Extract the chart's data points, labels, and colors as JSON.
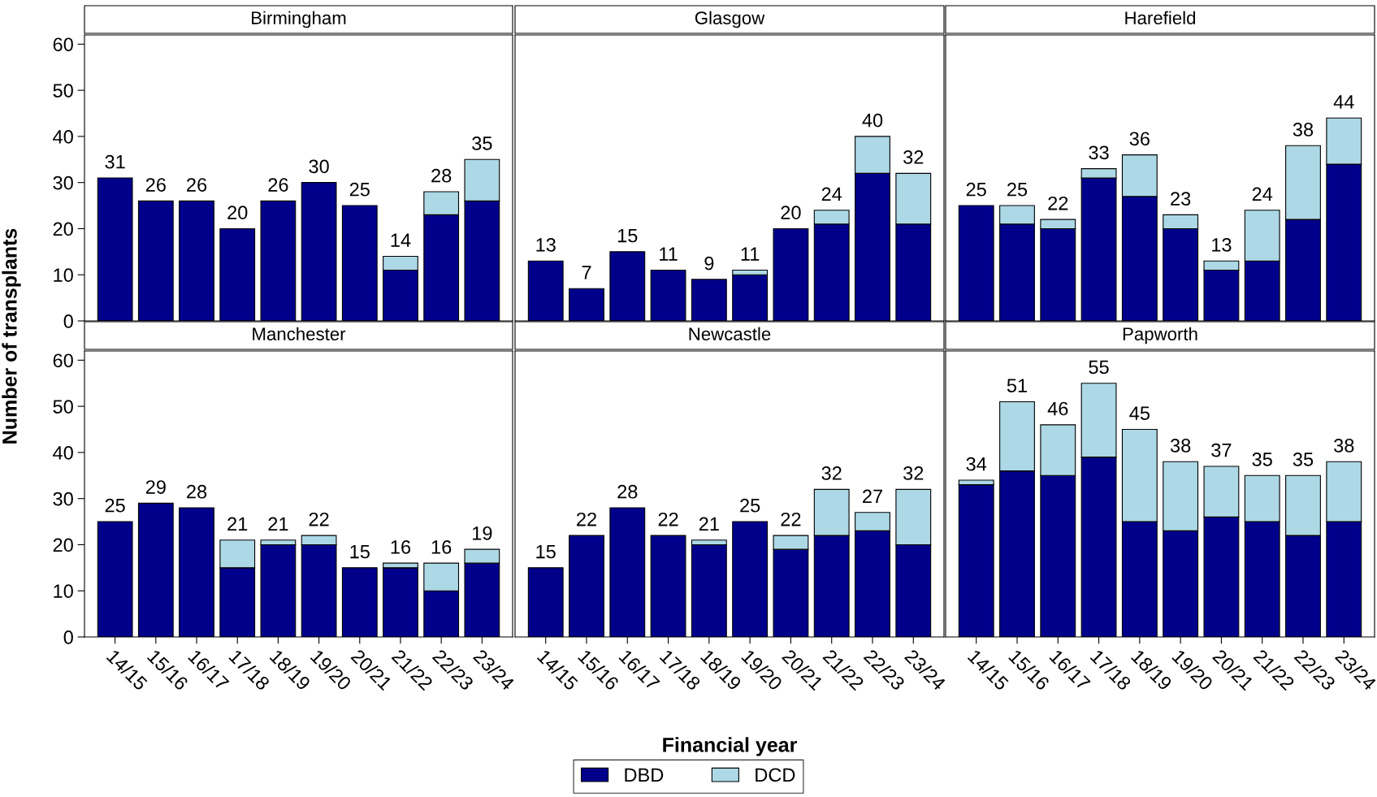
{
  "chart_data": [
    {
      "type": "bar",
      "title": "Birmingham",
      "ylabel": "Number of transplants",
      "legend": "bottom",
      "stacked": true,
      "tick_labels": "y",
      "ylim": [
        0,
        62
      ],
      "yticks": [
        0,
        10,
        20,
        30,
        40,
        50,
        60
      ],
      "categories": [
        "14/15",
        "15/16",
        "16/17",
        "17/18",
        "18/19",
        "19/20",
        "20/21",
        "21/22",
        "22/23",
        "23/24"
      ],
      "series": [
        {
          "name": "DBD",
          "color": "#00008b",
          "values": [
            31,
            26,
            26,
            20,
            26,
            30,
            25,
            11,
            23,
            26
          ]
        },
        {
          "name": "DCD",
          "color": "#add8e6",
          "values": [
            null,
            null,
            null,
            null,
            null,
            null,
            null,
            3,
            5,
            9
          ]
        }
      ],
      "totals": [
        "31",
        "26",
        "26",
        "20",
        "26",
        "30",
        "25",
        "14",
        "28",
        "35"
      ]
    },
    {
      "type": "bar",
      "title": "Glasgow",
      "stacked": true,
      "tick_labels": false,
      "ylim": [
        0,
        62
      ],
      "yticks": [
        0,
        10,
        20,
        30,
        40,
        50,
        60
      ],
      "categories": [
        "14/15",
        "15/16",
        "16/17",
        "17/18",
        "18/19",
        "19/20",
        "20/21",
        "21/22",
        "22/23",
        "23/24"
      ],
      "series": [
        {
          "name": "DBD",
          "color": "#00008b",
          "values": [
            13,
            7,
            15,
            11,
            9,
            10,
            20,
            21,
            32,
            21
          ]
        },
        {
          "name": "DCD",
          "color": "#add8e6",
          "values": [
            null,
            null,
            null,
            null,
            null,
            1,
            null,
            3,
            8,
            11
          ]
        }
      ],
      "totals": [
        "13",
        "7",
        "15",
        "11",
        "9",
        "11",
        "20",
        "24",
        "40",
        "32"
      ]
    },
    {
      "type": "bar",
      "title": "Harefield",
      "stacked": true,
      "tick_labels": false,
      "ylim": [
        0,
        62
      ],
      "yticks": [
        0,
        10,
        20,
        30,
        40,
        50,
        60
      ],
      "categories": [
        "14/15",
        "15/16",
        "16/17",
        "17/18",
        "18/19",
        "19/20",
        "20/21",
        "21/22",
        "22/23",
        "23/24"
      ],
      "series": [
        {
          "name": "DBD",
          "color": "#00008b",
          "values": [
            25,
            21,
            20,
            31,
            27,
            20,
            11,
            13,
            22,
            34
          ]
        },
        {
          "name": "DCD",
          "color": "#add8e6",
          "values": [
            null,
            4,
            2,
            2,
            9,
            3,
            2,
            11,
            16,
            10
          ]
        }
      ],
      "totals": [
        "25",
        "25",
        "22",
        "33",
        "36",
        "23",
        "13",
        "24",
        "38",
        "44"
      ]
    },
    {
      "type": "bar",
      "title": "Manchester",
      "stacked": true,
      "ylim": [
        0,
        62
      ],
      "yticks": [
        0,
        10,
        20,
        30,
        40,
        50,
        60
      ],
      "categories": [
        "14/15",
        "15/16",
        "16/17",
        "17/18",
        "18/19",
        "19/20",
        "20/21",
        "21/22",
        "22/23",
        "23/24"
      ],
      "series": [
        {
          "name": "DBD",
          "color": "#00008b",
          "values": [
            25,
            29,
            28,
            15,
            20,
            20,
            15,
            15,
            10,
            16
          ]
        },
        {
          "name": "DCD",
          "color": "#add8e6",
          "values": [
            null,
            null,
            null,
            6,
            1,
            2,
            null,
            1,
            6,
            3
          ]
        }
      ],
      "totals": [
        "25",
        "29",
        "28",
        "21",
        "21",
        "22",
        "15",
        "16",
        "16",
        "19"
      ]
    },
    {
      "type": "bar",
      "title": "Newcastle",
      "xlabel": "Financial year",
      "stacked": true,
      "tick_labels": "x",
      "ylim": [
        0,
        62
      ],
      "yticks": [
        0,
        10,
        20,
        30,
        40,
        50,
        60
      ],
      "categories": [
        "14/15",
        "15/16",
        "16/17",
        "17/18",
        "18/19",
        "19/20",
        "20/21",
        "21/22",
        "22/23",
        "23/24"
      ],
      "series": [
        {
          "name": "DBD",
          "color": "#00008b",
          "values": [
            15,
            22,
            28,
            22,
            20,
            25,
            19,
            22,
            23,
            20
          ]
        },
        {
          "name": "DCD",
          "color": "#add8e6",
          "values": [
            null,
            null,
            null,
            null,
            1,
            null,
            3,
            10,
            4,
            12
          ]
        }
      ],
      "totals": [
        "15",
        "22",
        "28",
        "22",
        "21",
        "25",
        "22",
        "32",
        "27",
        "32"
      ]
    },
    {
      "type": "bar",
      "title": "Papworth",
      "stacked": true,
      "tick_labels": "x",
      "ylim": [
        0,
        62
      ],
      "yticks": [
        0,
        10,
        20,
        30,
        40,
        50,
        60
      ],
      "categories": [
        "14/15",
        "15/16",
        "16/17",
        "17/18",
        "18/19",
        "19/20",
        "20/21",
        "21/22",
        "22/23",
        "23/24"
      ],
      "series": [
        {
          "name": "DBD",
          "color": "#00008b",
          "values": [
            33,
            36,
            35,
            39,
            25,
            23,
            26,
            25,
            22,
            25
          ]
        },
        {
          "name": "DCD",
          "color": "#add8e6",
          "values": [
            1,
            15,
            11,
            16,
            20,
            15,
            11,
            10,
            13,
            13
          ]
        }
      ],
      "totals": [
        "34",
        "51",
        "46",
        "55",
        "45",
        "38",
        "37",
        "35",
        "35",
        "38"
      ]
    }
  ]
}
